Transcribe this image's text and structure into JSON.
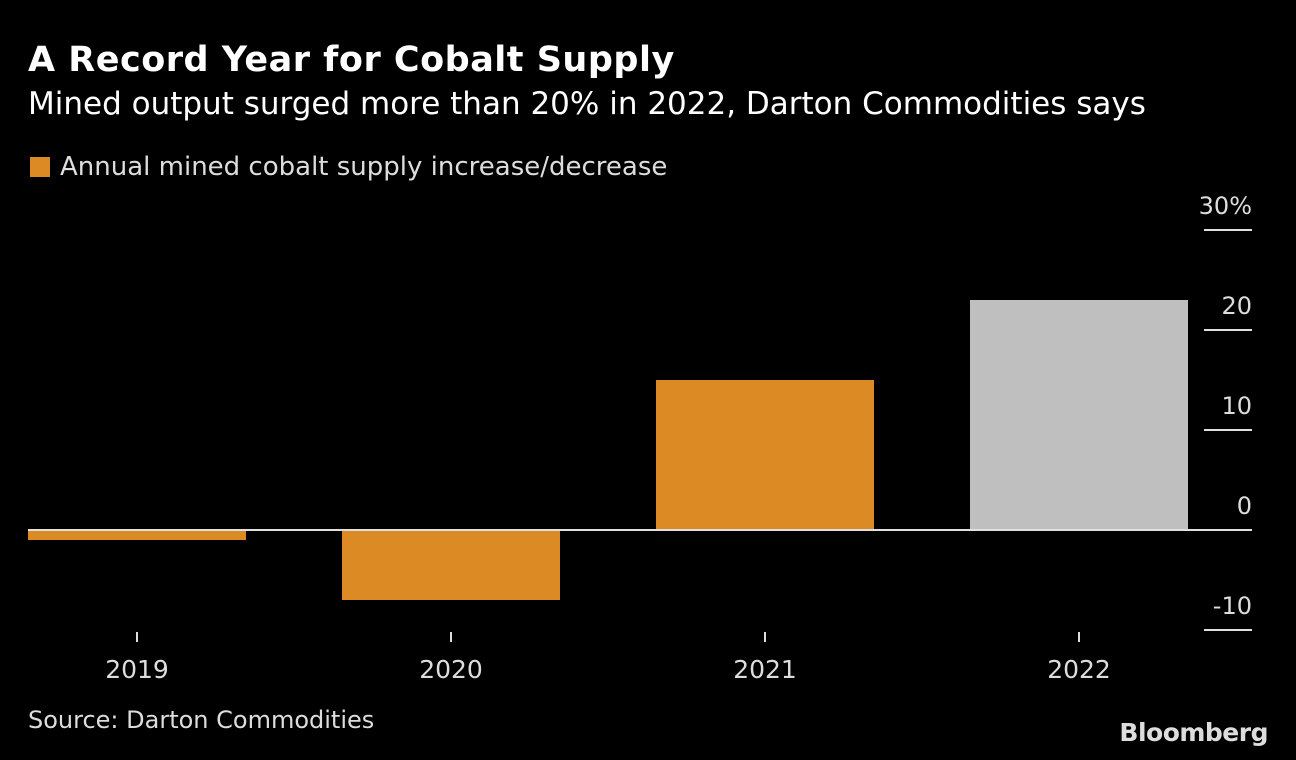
{
  "chart_data": {
    "type": "bar",
    "title": "A Record Year for Cobalt Supply",
    "subtitle": "Mined output surged more than 20% in 2022, Darton Commodities says",
    "legend": [
      {
        "name": "Annual mined cobalt supply increase/decrease",
        "color": "#db8a24"
      }
    ],
    "legend_placement": "top-left",
    "categories": [
      "2019",
      "2020",
      "2021",
      "2022"
    ],
    "series": [
      {
        "name": "Annual mined cobalt supply increase/decrease",
        "values": [
          -1,
          -7,
          15,
          23
        ]
      }
    ],
    "bar_colors": [
      "#db8a24",
      "#db8a24",
      "#db8a24",
      "#bfbfbf"
    ],
    "ylim": [
      -10,
      30
    ],
    "yticks": [
      30,
      20,
      10,
      0,
      -10
    ],
    "ytick_labels": [
      "30%",
      "20",
      "10",
      "0",
      "-10"
    ],
    "y_axis_side": "right",
    "grid": false,
    "source": "Source: Darton Commodities",
    "brand": "Bloomberg"
  },
  "colors": {
    "background": "#000000",
    "text": "#ffffff",
    "muted": "#dddddd",
    "zero_line": "#e0e0e0"
  }
}
